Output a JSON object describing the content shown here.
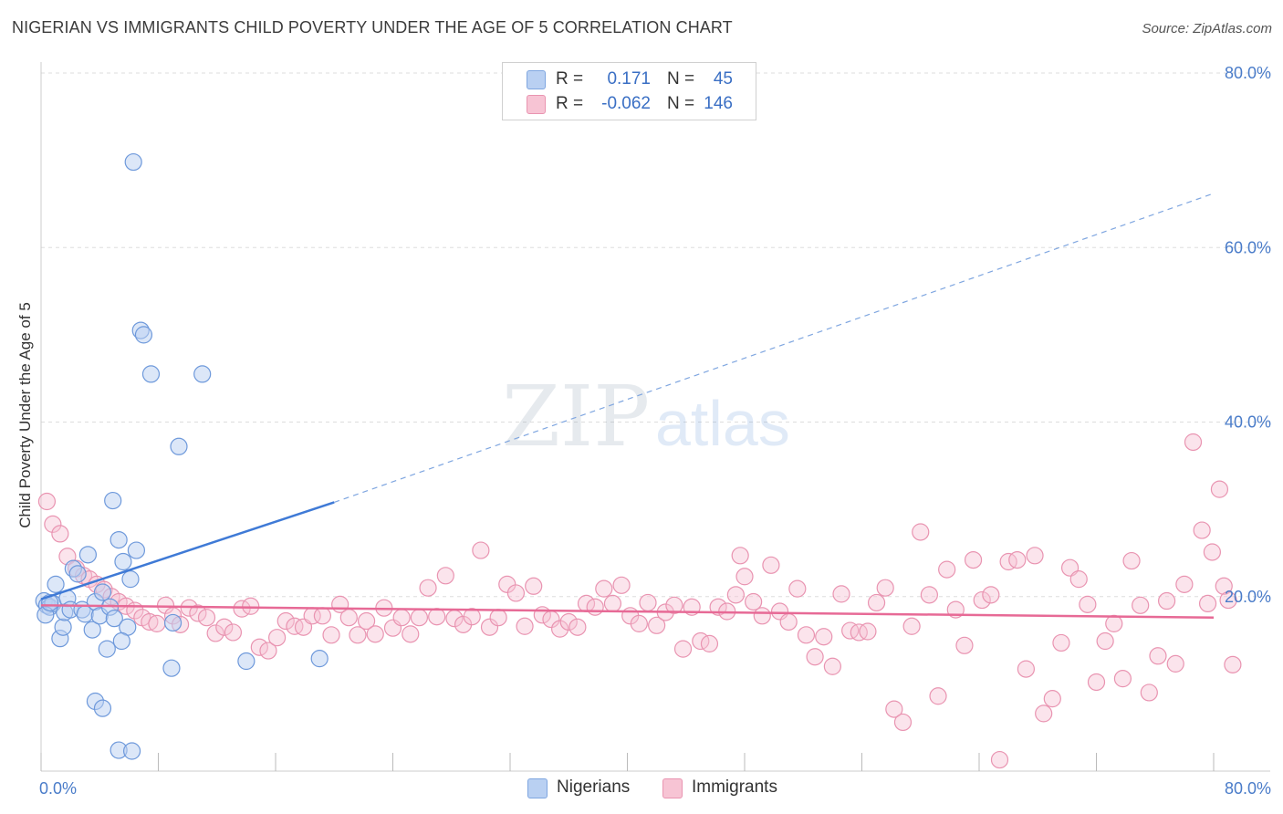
{
  "title": "NIGERIAN VS IMMIGRANTS CHILD POVERTY UNDER THE AGE OF 5 CORRELATION CHART",
  "source": "Source: ZipAtlas.com",
  "colors": {
    "blue": "#3f7ad6",
    "blue_fill": "#b9d0f2",
    "pink": "#e76a96",
    "pink_fill": "#f7c4d4",
    "tick_text": "#4a7cc9"
  },
  "legend": {
    "rows": [
      {
        "r_label": "R =",
        "r_value": "0.171",
        "n_label": "N =",
        "n_value": "45"
      },
      {
        "r_label": "R =",
        "r_value": "-0.062",
        "n_label": "N =",
        "n_value": "146"
      }
    ]
  },
  "bottom_legend": {
    "series1": "Nigerians",
    "series2": "Immigrants"
  },
  "watermark": {
    "part1": "ZIP",
    "part2": "atlas"
  },
  "chart_data": {
    "type": "scatter",
    "title": "NIGERIAN VS IMMIGRANTS CHILD POVERTY UNDER THE AGE OF 5 CORRELATION CHART",
    "xlabel": "",
    "ylabel": "Child Poverty Under the Age of 5",
    "xlim": [
      0,
      80
    ],
    "ylim": [
      0,
      80
    ],
    "x_tick_labels": [
      "0.0%",
      "80.0%"
    ],
    "y_tick_labels": [
      "20.0%",
      "40.0%",
      "60.0%",
      "80.0%"
    ],
    "y_ticks": [
      20,
      40,
      60,
      80
    ],
    "grid": true,
    "legend_position": "top-center",
    "series": [
      {
        "name": "Nigerians",
        "R": 0.171,
        "N": 45,
        "trend": {
          "x0": 0,
          "y0": 19.7,
          "x1": 20,
          "y1": 30.8,
          "dashed_to_x": 80,
          "dashed_to_y": 66.2
        },
        "points": [
          [
            0.2,
            19.5
          ],
          [
            0.4,
            19.0
          ],
          [
            0.6,
            18.8
          ],
          [
            0.8,
            19.2
          ],
          [
            1.0,
            21.4
          ],
          [
            1.3,
            15.2
          ],
          [
            1.5,
            16.5
          ],
          [
            1.6,
            18.2
          ],
          [
            1.8,
            19.8
          ],
          [
            2.0,
            18.5
          ],
          [
            2.2,
            23.2
          ],
          [
            2.5,
            22.6
          ],
          [
            2.8,
            18.5
          ],
          [
            3.0,
            18.0
          ],
          [
            3.2,
            24.8
          ],
          [
            3.5,
            16.2
          ],
          [
            3.7,
            19.4
          ],
          [
            4.0,
            17.8
          ],
          [
            4.2,
            20.5
          ],
          [
            4.5,
            14.0
          ],
          [
            4.7,
            18.8
          ],
          [
            4.9,
            31.0
          ],
          [
            5.0,
            17.5
          ],
          [
            5.3,
            26.5
          ],
          [
            5.6,
            24.0
          ],
          [
            5.9,
            16.5
          ],
          [
            6.1,
            22.0
          ],
          [
            6.5,
            25.3
          ],
          [
            6.3,
            69.8
          ],
          [
            6.8,
            50.5
          ],
          [
            7.0,
            50.0
          ],
          [
            7.5,
            45.5
          ],
          [
            9.0,
            17.0
          ],
          [
            9.4,
            37.2
          ],
          [
            11.0,
            45.5
          ],
          [
            8.9,
            11.8
          ],
          [
            5.5,
            14.9
          ],
          [
            3.7,
            8.0
          ],
          [
            4.2,
            7.2
          ],
          [
            5.3,
            2.4
          ],
          [
            6.2,
            2.3
          ],
          [
            14.0,
            12.6
          ],
          [
            19.0,
            12.9
          ],
          [
            0.3,
            17.9
          ],
          [
            0.6,
            19.3
          ]
        ]
      },
      {
        "name": "Immigrants",
        "R": -0.062,
        "N": 146,
        "trend": {
          "x0": 0,
          "y0": 19.0,
          "x1": 80,
          "y1": 17.6
        },
        "points": [
          [
            0.4,
            30.9
          ],
          [
            0.8,
            28.3
          ],
          [
            1.3,
            27.2
          ],
          [
            1.8,
            24.6
          ],
          [
            2.4,
            23.2
          ],
          [
            2.9,
            22.4
          ],
          [
            3.3,
            22.0
          ],
          [
            3.8,
            21.4
          ],
          [
            4.3,
            20.8
          ],
          [
            4.8,
            20.0
          ],
          [
            5.3,
            19.4
          ],
          [
            5.8,
            18.9
          ],
          [
            6.4,
            18.4
          ],
          [
            6.9,
            17.6
          ],
          [
            7.4,
            17.1
          ],
          [
            7.9,
            16.9
          ],
          [
            8.5,
            19.0
          ],
          [
            9.0,
            17.8
          ],
          [
            9.5,
            16.8
          ],
          [
            10.1,
            18.7
          ],
          [
            10.7,
            18.1
          ],
          [
            11.3,
            17.6
          ],
          [
            11.9,
            15.8
          ],
          [
            12.5,
            16.5
          ],
          [
            13.1,
            15.9
          ],
          [
            13.7,
            18.6
          ],
          [
            14.3,
            18.9
          ],
          [
            14.9,
            14.2
          ],
          [
            15.5,
            13.8
          ],
          [
            16.1,
            15.3
          ],
          [
            16.7,
            17.2
          ],
          [
            17.3,
            16.6
          ],
          [
            17.9,
            16.5
          ],
          [
            18.5,
            17.8
          ],
          [
            19.2,
            17.8
          ],
          [
            19.8,
            15.6
          ],
          [
            20.4,
            19.1
          ],
          [
            21.0,
            17.6
          ],
          [
            21.6,
            15.6
          ],
          [
            22.2,
            17.2
          ],
          [
            22.8,
            15.7
          ],
          [
            23.4,
            18.7
          ],
          [
            24.0,
            16.4
          ],
          [
            24.6,
            17.6
          ],
          [
            25.2,
            15.7
          ],
          [
            25.8,
            17.6
          ],
          [
            26.4,
            21.0
          ],
          [
            27.0,
            17.7
          ],
          [
            27.6,
            22.4
          ],
          [
            28.2,
            17.5
          ],
          [
            28.8,
            16.8
          ],
          [
            29.4,
            17.7
          ],
          [
            30.0,
            25.3
          ],
          [
            30.6,
            16.5
          ],
          [
            31.2,
            17.6
          ],
          [
            31.8,
            21.4
          ],
          [
            32.4,
            20.4
          ],
          [
            33.0,
            16.6
          ],
          [
            33.6,
            21.2
          ],
          [
            34.2,
            17.9
          ],
          [
            34.8,
            17.4
          ],
          [
            35.4,
            16.3
          ],
          [
            36.0,
            17.1
          ],
          [
            36.6,
            16.5
          ],
          [
            37.2,
            19.2
          ],
          [
            37.8,
            18.8
          ],
          [
            38.4,
            20.9
          ],
          [
            39.0,
            19.2
          ],
          [
            39.6,
            21.3
          ],
          [
            40.2,
            17.8
          ],
          [
            40.8,
            16.9
          ],
          [
            41.4,
            19.3
          ],
          [
            42.0,
            16.7
          ],
          [
            42.6,
            18.2
          ],
          [
            43.2,
            19.0
          ],
          [
            43.8,
            14.0
          ],
          [
            44.4,
            18.8
          ],
          [
            45.0,
            14.9
          ],
          [
            45.6,
            14.6
          ],
          [
            46.2,
            18.8
          ],
          [
            46.8,
            18.3
          ],
          [
            47.4,
            20.2
          ],
          [
            47.7,
            24.7
          ],
          [
            48.0,
            22.3
          ],
          [
            48.6,
            19.4
          ],
          [
            49.2,
            17.8
          ],
          [
            49.8,
            23.6
          ],
          [
            50.4,
            18.3
          ],
          [
            51.0,
            17.1
          ],
          [
            51.6,
            20.9
          ],
          [
            52.2,
            15.6
          ],
          [
            52.8,
            13.1
          ],
          [
            53.4,
            15.4
          ],
          [
            54.0,
            12.0
          ],
          [
            54.6,
            20.3
          ],
          [
            55.2,
            16.1
          ],
          [
            55.8,
            15.9
          ],
          [
            56.4,
            16.0
          ],
          [
            57.0,
            19.3
          ],
          [
            57.6,
            21.0
          ],
          [
            58.2,
            7.1
          ],
          [
            58.8,
            5.6
          ],
          [
            59.4,
            16.6
          ],
          [
            60.0,
            27.4
          ],
          [
            60.6,
            20.2
          ],
          [
            61.2,
            8.6
          ],
          [
            61.8,
            23.1
          ],
          [
            62.4,
            18.5
          ],
          [
            63.0,
            14.4
          ],
          [
            63.6,
            24.2
          ],
          [
            64.2,
            19.6
          ],
          [
            64.8,
            20.2
          ],
          [
            65.4,
            1.3
          ],
          [
            66.0,
            24.0
          ],
          [
            66.6,
            24.2
          ],
          [
            67.2,
            11.7
          ],
          [
            67.8,
            24.7
          ],
          [
            68.4,
            6.6
          ],
          [
            69.0,
            8.3
          ],
          [
            69.6,
            14.7
          ],
          [
            70.2,
            23.3
          ],
          [
            70.8,
            22.0
          ],
          [
            71.4,
            19.1
          ],
          [
            72.0,
            10.2
          ],
          [
            72.6,
            14.9
          ],
          [
            73.2,
            16.9
          ],
          [
            73.8,
            10.6
          ],
          [
            74.4,
            24.1
          ],
          [
            75.0,
            19.0
          ],
          [
            75.6,
            9.0
          ],
          [
            76.2,
            13.2
          ],
          [
            76.8,
            19.5
          ],
          [
            77.4,
            12.3
          ],
          [
            78.0,
            21.4
          ],
          [
            78.6,
            37.7
          ],
          [
            79.2,
            27.6
          ],
          [
            79.6,
            19.2
          ],
          [
            79.9,
            25.1
          ],
          [
            80.4,
            32.3
          ],
          [
            80.7,
            21.2
          ],
          [
            81.0,
            19.6
          ],
          [
            81.3,
            12.2
          ]
        ]
      }
    ]
  }
}
